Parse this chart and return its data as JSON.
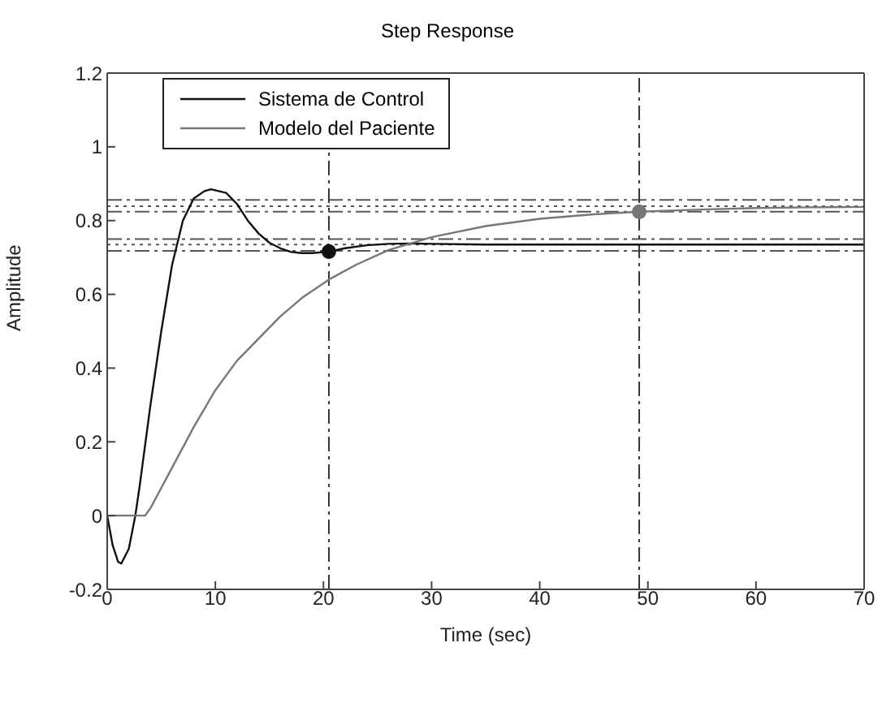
{
  "chart_data": {
    "type": "line",
    "title": "Step Response",
    "xlabel": "Time (sec)",
    "ylabel": "Amplitude",
    "xlim": [
      0,
      70
    ],
    "xticks": [
      0,
      10,
      20,
      30,
      40,
      50,
      60,
      70
    ],
    "ylim": [
      -0.2,
      1.2
    ],
    "yticks": [
      -0.2,
      0,
      0.2,
      0.4,
      0.6,
      0.8,
      1,
      1.2
    ],
    "grid": false,
    "legend": "top left",
    "marker": "none",
    "series": [
      {
        "name": "Sistema de Control",
        "color": "#111111",
        "x": [
          0,
          0.5,
          1,
          1.3,
          2,
          2.6,
          3,
          4,
          5,
          6,
          7,
          8,
          9,
          9.6,
          11,
          12,
          13,
          14,
          15,
          16,
          17,
          18,
          19,
          20.5,
          22,
          24,
          26,
          28,
          30,
          35,
          40,
          50,
          60,
          70
        ],
        "values": [
          0,
          -0.08,
          -0.125,
          -0.13,
          -0.09,
          0,
          0.08,
          0.3,
          0.5,
          0.68,
          0.8,
          0.86,
          0.88,
          0.885,
          0.875,
          0.845,
          0.8,
          0.765,
          0.74,
          0.725,
          0.715,
          0.712,
          0.712,
          0.716,
          0.725,
          0.733,
          0.737,
          0.738,
          0.737,
          0.735,
          0.735,
          0.735,
          0.735,
          0.735
        ]
      },
      {
        "name": "Modelo del Paciente",
        "color": "#777777",
        "x": [
          0,
          3.5,
          4,
          6,
          8,
          10,
          12,
          14,
          16,
          18,
          20.5,
          23,
          26,
          30,
          35,
          40,
          45,
          49.2,
          55,
          60,
          65,
          70
        ],
        "values": [
          0,
          0,
          0.02,
          0.13,
          0.24,
          0.34,
          0.42,
          0.48,
          0.54,
          0.59,
          0.64,
          0.68,
          0.72,
          0.755,
          0.785,
          0.805,
          0.817,
          0.824,
          0.83,
          0.834,
          0.836,
          0.837
        ]
      },
      {
        "type": "scatter",
        "marker": "circle",
        "x": [
          20.5,
          49.2
        ],
        "values": [
          0.716,
          0.824
        ],
        "colors": [
          "#111111",
          "#777777"
        ]
      }
    ],
    "ref_lines": [
      {
        "axis": "y",
        "value": 0.856,
        "color": "#555555",
        "line_style": "dashed"
      },
      {
        "axis": "y",
        "value": 0.839,
        "color": "#555555",
        "line_style": "dotted"
      },
      {
        "axis": "y",
        "value": 0.824,
        "color": "#555555",
        "line_style": "dashed"
      },
      {
        "axis": "y",
        "value": 0.75,
        "color": "#555555",
        "line_style": "dashed"
      },
      {
        "axis": "y",
        "value": 0.735,
        "color": "#555555",
        "line_style": "dotted"
      },
      {
        "axis": "y",
        "value": 0.718,
        "color": "#555555",
        "line_style": "dashed"
      },
      {
        "axis": "x",
        "value": 20.5,
        "color": "#333333",
        "line_style": "dashed"
      },
      {
        "axis": "x",
        "value": 49.2,
        "color": "#333333",
        "line_style": "dashed"
      }
    ]
  }
}
